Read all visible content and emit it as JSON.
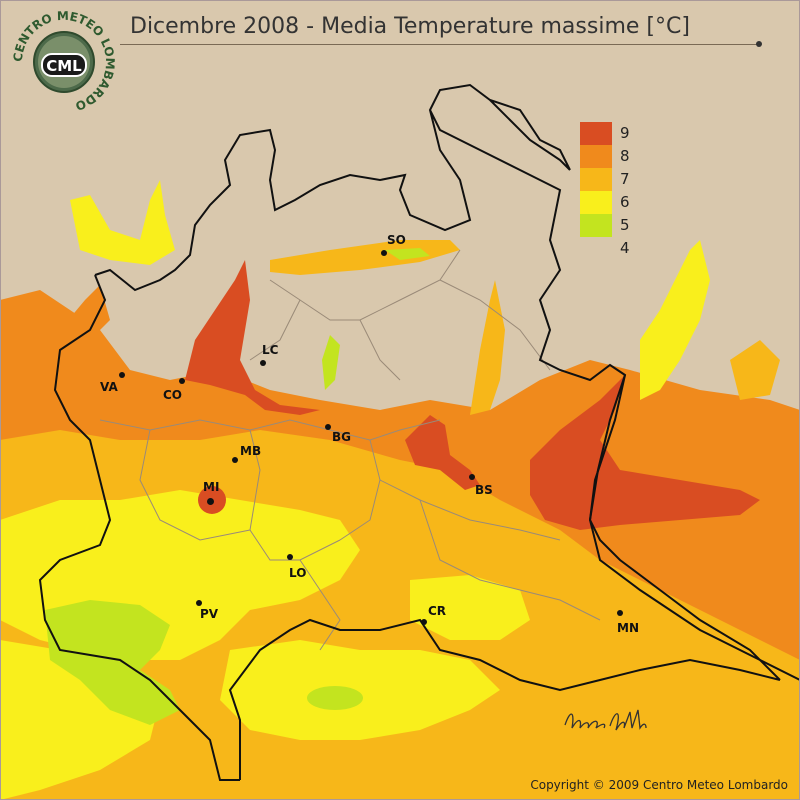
{
  "title": "Dicembre 2008 - Media Temperature massime [°C]",
  "logo": {
    "ring_text": "CENTRO METEO LOMBARDO",
    "initials": "CML"
  },
  "legend": [
    {
      "label": "9",
      "color": "#d94d22"
    },
    {
      "label": "8",
      "color": "#f08a1c"
    },
    {
      "label": "7",
      "color": "#f7b719"
    },
    {
      "label": "6",
      "color": "#f9ef1c"
    },
    {
      "label": "5",
      "color": "#c3e41f"
    },
    {
      "label": "4",
      "color": "#ffffff"
    }
  ],
  "cities": [
    {
      "code": "SO"
    },
    {
      "code": "VA"
    },
    {
      "code": "CO"
    },
    {
      "code": "LC"
    },
    {
      "code": "BG"
    },
    {
      "code": "MB"
    },
    {
      "code": "MI"
    },
    {
      "code": "BS"
    },
    {
      "code": "LO"
    },
    {
      "code": "PV"
    },
    {
      "code": "CR"
    },
    {
      "code": "MN"
    }
  ],
  "signature": "Bruno Gilli",
  "copyright": "Copyright © 2009 Centro Meteo Lombardo",
  "colors": {
    "background": "#d9c8ad",
    "border": "#111111",
    "province_lines": "#9a8a78"
  }
}
